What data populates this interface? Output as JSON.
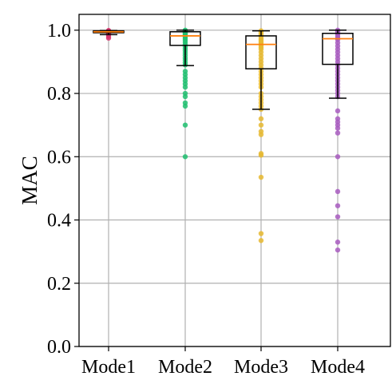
{
  "chart_data": {
    "type": "box",
    "title": "",
    "xlabel": "",
    "ylabel": "MAC",
    "ylim": [
      0.0,
      1.05
    ],
    "yticks": [
      0.0,
      0.2,
      0.4,
      0.6,
      0.8,
      1.0
    ],
    "ytick_labels": [
      "0.0",
      "0.2",
      "0.4",
      "0.6",
      "0.8",
      "1.0"
    ],
    "grid": true,
    "categories": [
      "Mode1",
      "Mode2",
      "Mode3",
      "Mode4"
    ],
    "colors": {
      "box": "#000000",
      "median": "#ff7f0e",
      "grid": "#b0b0b0"
    },
    "series": [
      {
        "category": "Mode1",
        "color": "#d6336c",
        "box": {
          "whisker_low": 0.986,
          "q1": 0.992,
          "median": 0.995,
          "q3": 0.998,
          "whisker_high": 0.999
        },
        "points": [
          0.999,
          0.998,
          0.998,
          0.997,
          0.996,
          0.995,
          0.995,
          0.994,
          0.993,
          0.992,
          0.99,
          0.988,
          0.986,
          0.98,
          0.975
        ]
      },
      {
        "category": "Mode2",
        "color": "#20c070",
        "box": {
          "whisker_low": 0.888,
          "q1": 0.952,
          "median": 0.982,
          "q3": 0.995,
          "whisker_high": 1.0
        },
        "points": [
          1.0,
          0.998,
          0.996,
          0.995,
          0.993,
          0.99,
          0.988,
          0.985,
          0.982,
          0.978,
          0.974,
          0.968,
          0.962,
          0.955,
          0.948,
          0.942,
          0.935,
          0.928,
          0.92,
          0.912,
          0.905,
          0.897,
          0.89,
          0.87,
          0.86,
          0.85,
          0.84,
          0.83,
          0.82,
          0.8,
          0.79,
          0.77,
          0.76,
          0.7,
          0.6
        ]
      },
      {
        "category": "Mode3",
        "color": "#e6b830",
        "box": {
          "whisker_low": 0.75,
          "q1": 0.878,
          "median": 0.955,
          "q3": 0.982,
          "whisker_high": 0.998
        },
        "points": [
          0.998,
          0.995,
          0.99,
          0.985,
          0.98,
          0.975,
          0.97,
          0.965,
          0.96,
          0.955,
          0.95,
          0.945,
          0.94,
          0.93,
          0.92,
          0.91,
          0.9,
          0.89,
          0.88,
          0.87,
          0.86,
          0.85,
          0.84,
          0.83,
          0.82,
          0.8,
          0.79,
          0.78,
          0.77,
          0.76,
          0.75,
          0.72,
          0.7,
          0.68,
          0.67,
          0.61,
          0.605,
          0.535,
          0.357,
          0.335
        ]
      },
      {
        "category": "Mode4",
        "color": "#a85cc0",
        "box": {
          "whisker_low": 0.785,
          "q1": 0.892,
          "median": 0.973,
          "q3": 0.99,
          "whisker_high": 1.0
        },
        "points": [
          1.0,
          0.997,
          0.993,
          0.99,
          0.985,
          0.98,
          0.975,
          0.97,
          0.96,
          0.95,
          0.94,
          0.93,
          0.92,
          0.91,
          0.9,
          0.89,
          0.88,
          0.87,
          0.86,
          0.85,
          0.84,
          0.83,
          0.82,
          0.81,
          0.8,
          0.79,
          0.745,
          0.72,
          0.71,
          0.7,
          0.69,
          0.675,
          0.6,
          0.49,
          0.445,
          0.41,
          0.33,
          0.305
        ]
      }
    ]
  }
}
